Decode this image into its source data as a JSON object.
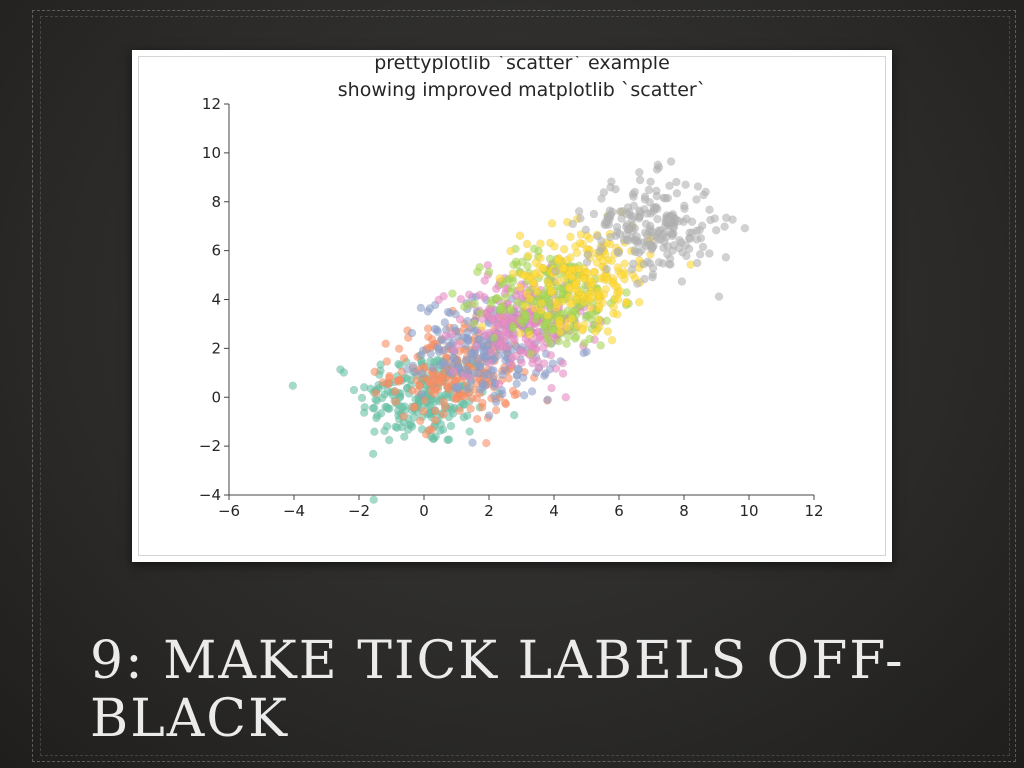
{
  "slide": {
    "title": "9: MAKE TICK LABELS OFF-BLACK"
  },
  "chart_data": {
    "type": "scatter",
    "title": "prettyplotlib `scatter` example",
    "subtitle": "showing improved matplotlib `scatter`",
    "xlabel": "",
    "ylabel": "",
    "xlim": [
      -6,
      12
    ],
    "ylim": [
      -4,
      12
    ],
    "xticks": [
      -6,
      -4,
      -2,
      0,
      2,
      4,
      6,
      8,
      10,
      12
    ],
    "yticks": [
      -4,
      -2,
      0,
      2,
      4,
      6,
      8,
      10,
      12
    ],
    "grid": false,
    "spines": [
      "left",
      "bottom"
    ],
    "tick_label_color": "#262626",
    "alpha": 0.6,
    "series": [
      {
        "color": "#66c2a5",
        "center": [
          0,
          0
        ],
        "points_per_series": 1000
      },
      {
        "color": "#fc8d62",
        "center": [
          1,
          1
        ],
        "points_per_series": 1000
      },
      {
        "color": "#8da0cb",
        "center": [
          2,
          2
        ],
        "points_per_series": 1000
      },
      {
        "color": "#e78ac3",
        "center": [
          3,
          3
        ],
        "points_per_series": 1000
      },
      {
        "color": "#a6d854",
        "center": [
          4,
          4
        ],
        "points_per_series": 1000
      },
      {
        "color": "#ffd92f",
        "center": [
          5,
          5
        ],
        "points_per_series": 1000
      },
      {
        "color": "#b3b3b3",
        "center": [
          7,
          7
        ],
        "points_per_series": 1000
      }
    ]
  }
}
